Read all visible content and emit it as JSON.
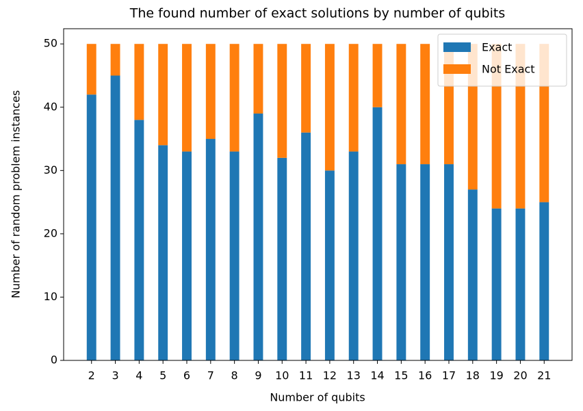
{
  "chart_data": {
    "type": "stacked_bar",
    "title": "The found number of exact solutions by number of qubits",
    "x_label": "Number of qubits",
    "y_label": "Number of random problem instances",
    "x": [
      2,
      3,
      4,
      5,
      6,
      7,
      8,
      9,
      10,
      11,
      12,
      13,
      14,
      15,
      16,
      17,
      18,
      19,
      20,
      21
    ],
    "xlim": [
      0.83,
      22.17
    ],
    "series": [
      {
        "name": "Exact",
        "color": "#1f77b4",
        "values": [
          42,
          45,
          38,
          34,
          33,
          35,
          33,
          39,
          32,
          36,
          30,
          33,
          40,
          31,
          31,
          31,
          27,
          24,
          24,
          25
        ]
      },
      {
        "name": "Not Exact",
        "color": "#ff7f0e",
        "values": [
          8,
          5,
          12,
          16,
          17,
          15,
          17,
          11,
          18,
          14,
          20,
          17,
          10,
          19,
          19,
          19,
          23,
          26,
          26,
          25
        ]
      }
    ],
    "ylim": [
      0,
      52.4
    ],
    "yticks": [
      0,
      10,
      20,
      30,
      40,
      50
    ],
    "legend": "upper right"
  }
}
